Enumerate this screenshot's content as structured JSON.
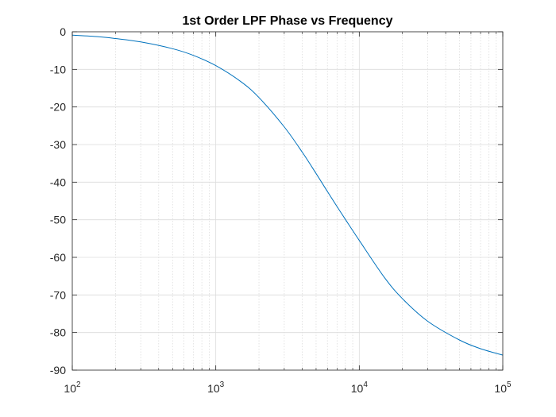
{
  "chart_data": {
    "type": "line",
    "title": "1st Order LPF Phase vs Frequency",
    "xlabel": "",
    "ylabel": "",
    "xscale": "log",
    "xlim": [
      100,
      100000
    ],
    "ylim": [
      -90,
      0
    ],
    "grid": true,
    "minor_grid_x": true,
    "legend": "none",
    "xticks": [
      {
        "base": "10",
        "exp": "2"
      },
      {
        "base": "10",
        "exp": "3"
      },
      {
        "base": "10",
        "exp": "4"
      },
      {
        "base": "10",
        "exp": "5"
      }
    ],
    "xtick_values": [
      100,
      1000,
      10000,
      100000
    ],
    "yticks": [
      "0",
      "-10",
      "-20",
      "-30",
      "-40",
      "-50",
      "-60",
      "-70",
      "-80",
      "-90"
    ],
    "ytick_values": [
      0,
      -10,
      -20,
      -30,
      -40,
      -50,
      -60,
      -70,
      -80,
      -90
    ],
    "series": [
      {
        "color": "#0072BD",
        "x": [
          100,
          150,
          200,
          300,
          500,
          700,
          1000,
          1500,
          2000,
          3000,
          4000,
          5000,
          6000,
          7000,
          8000,
          10000,
          15000,
          20000,
          30000,
          50000,
          70000,
          100000
        ],
        "y": [
          -0.9,
          -1.3,
          -1.8,
          -2.7,
          -4.5,
          -6.3,
          -9.0,
          -13.3,
          -17.5,
          -25.3,
          -32.0,
          -37.7,
          -42.5,
          -46.5,
          -49.9,
          -55.5,
          -65.4,
          -71.0,
          -77.0,
          -82.0,
          -84.3,
          -86.0
        ]
      }
    ],
    "colors": {
      "line": "#0072BD",
      "axes": "#262626",
      "grid": "#dcdcdc"
    }
  }
}
